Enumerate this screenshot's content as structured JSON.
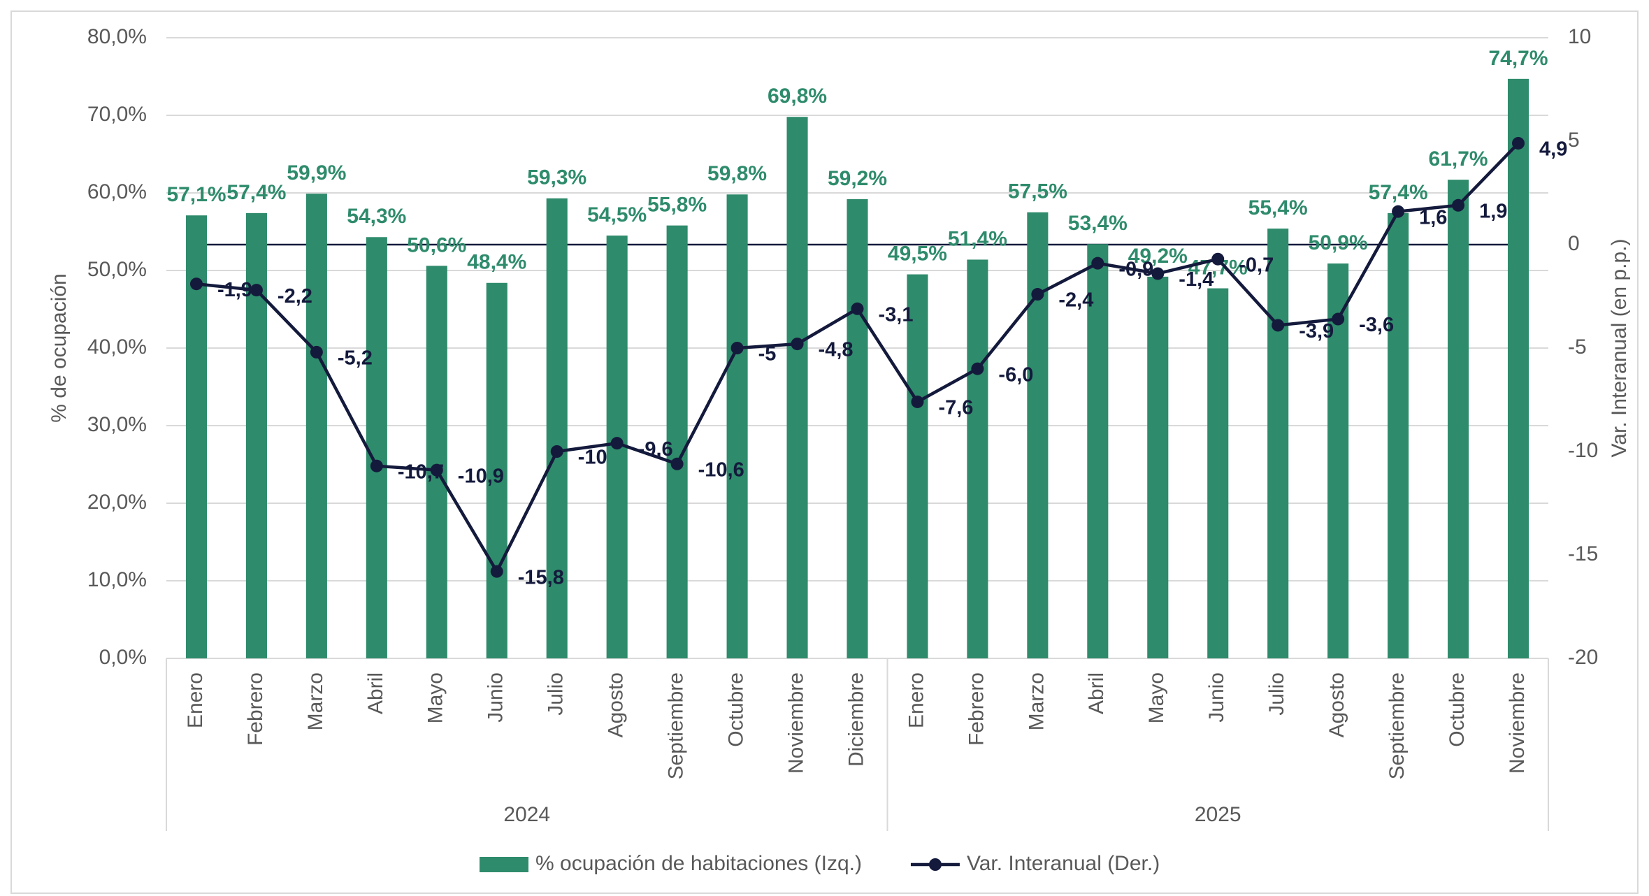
{
  "chart_data": {
    "type": "bar_line",
    "y_label": "% de ocupación",
    "y2_label": "Var. Interanual (en p.p.)",
    "groups": [
      {
        "name": "2024",
        "categories": [
          "Enero",
          "Febrero",
          "Marzo",
          "Abril",
          "Mayo",
          "Junio",
          "Julio",
          "Agosto",
          "Septiembre",
          "Octubre",
          "Noviembre",
          "Diciembre"
        ]
      },
      {
        "name": "2025",
        "categories": [
          "Enero",
          "Febrero",
          "Marzo",
          "Abril",
          "Mayo",
          "Junio",
          "Julio",
          "Agosto",
          "Septiembre",
          "Octubre",
          "Noviembre"
        ]
      }
    ],
    "series": [
      {
        "name": "% ocupación de habitaciones (Izq.)",
        "type": "bar",
        "color": "#2e8b6b",
        "values": [
          57.1,
          57.4,
          59.9,
          54.3,
          50.6,
          48.4,
          59.3,
          54.5,
          55.8,
          59.8,
          69.8,
          59.2,
          49.5,
          51.4,
          57.5,
          53.4,
          49.2,
          47.7,
          55.4,
          50.9,
          57.4,
          61.7,
          74.7
        ],
        "value_labels": [
          "57,1%",
          "57,4%",
          "59,9%",
          "54,3%",
          "50,6%",
          "48,4%",
          "59,3%",
          "54,5%",
          "55,8%",
          "59,8%",
          "69,8%",
          "59,2%",
          "49,5%",
          "51,4%",
          "57,5%",
          "53,4%",
          "49,2%",
          "47,7%",
          "55,4%",
          "50,9%",
          "57,4%",
          "61,7%",
          "74,7%"
        ]
      },
      {
        "name": "Var. Interanual (Der.)",
        "type": "line",
        "axis": "y2",
        "color": "#141a3c",
        "values": [
          -1.9,
          -2.2,
          -5.2,
          -10.7,
          -10.9,
          -15.8,
          -10,
          -9.6,
          -10.6,
          -5,
          -4.8,
          -3.1,
          -7.6,
          -6.0,
          -2.4,
          -0.9,
          -1.4,
          -0.7,
          -3.9,
          -3.6,
          1.6,
          1.9,
          4.9
        ],
        "value_labels": [
          "-1,9",
          "-2,2",
          "-5,2",
          "-10,7",
          "-10,9",
          "-15,8",
          "-10",
          "-9,6",
          "-10,6",
          "-5",
          "-4,8",
          "-3,1",
          "-7,6",
          "-6,0",
          "-2,4",
          "-0,9",
          "-1,4",
          "-0,7",
          "-3,9",
          "-3,6",
          "1,6",
          "1,9",
          "4,9"
        ]
      }
    ],
    "ylim": [
      0,
      80
    ],
    "yticks": [
      {
        "value": 0,
        "label": "0,0%"
      },
      {
        "value": 10,
        "label": "10,0%"
      },
      {
        "value": 20,
        "label": "20,0%"
      },
      {
        "value": 30,
        "label": "30,0%"
      },
      {
        "value": 40,
        "label": "40,0%"
      },
      {
        "value": 50,
        "label": "50,0%"
      },
      {
        "value": 60,
        "label": "60,0%"
      },
      {
        "value": 70,
        "label": "70,0%"
      },
      {
        "value": 80,
        "label": "80,0%"
      }
    ],
    "y2lim": [
      -20,
      10
    ],
    "y2ticks": [
      -20,
      -15,
      -10,
      -5,
      0,
      5,
      10
    ],
    "grid": true,
    "legend": "bottom"
  }
}
